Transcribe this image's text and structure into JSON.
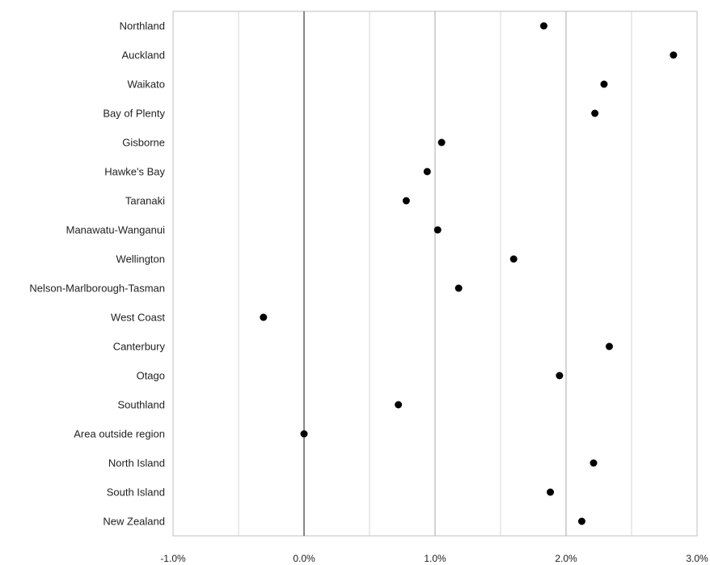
{
  "chart_data": {
    "type": "scatter",
    "orientation": "horizontal",
    "title": "",
    "xlabel": "",
    "ylabel": "",
    "xlim": [
      -1.0,
      3.0
    ],
    "x_ticks": [
      -1.0,
      0.0,
      1.0,
      2.0,
      3.0
    ],
    "x_tick_labels": [
      "-1.0%",
      "0.0%",
      "1.0%",
      "2.0%",
      "3.0%"
    ],
    "grid": "vertical",
    "legend": "none",
    "categories": [
      "Northland",
      "Auckland",
      "Waikato",
      "Bay of Plenty",
      "Gisborne",
      "Hawke's Bay",
      "Taranaki",
      "Manawatu-Wanganui",
      "Wellington",
      "Nelson-Marlborough-Tasman",
      "West Coast",
      "Canterbury",
      "Otago",
      "Southland",
      "Area outside region",
      "North Island",
      "South Island",
      "New Zealand"
    ],
    "series": [
      {
        "values": [
          1.83,
          2.82,
          2.29,
          2.22,
          1.05,
          0.94,
          0.78,
          1.02,
          1.6,
          1.18,
          -0.31,
          2.33,
          1.95,
          0.72,
          0.0,
          2.21,
          1.88,
          2.12
        ]
      }
    ],
    "marker_color": "#000000",
    "gridline_color": "#c0c0c0",
    "zero_line_color": "#555555"
  }
}
